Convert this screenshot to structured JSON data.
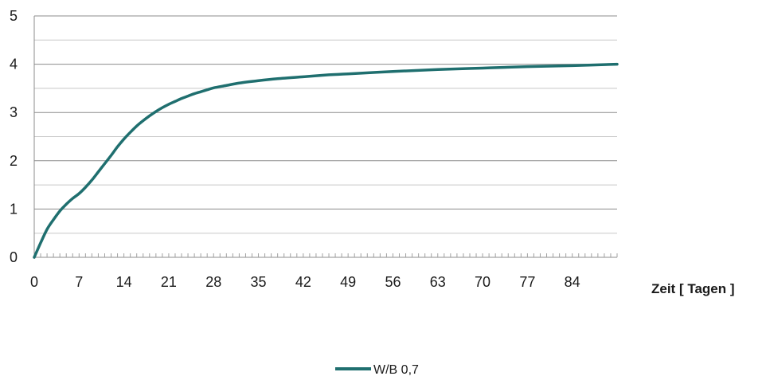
{
  "chart_data": {
    "type": "line",
    "xlabel": "Zeit [ Tagen ]",
    "ylabel": "",
    "title": "",
    "xlim": [
      0,
      91
    ],
    "ylim": [
      0,
      5
    ],
    "x_ticks": [
      0,
      7,
      14,
      21,
      28,
      35,
      42,
      49,
      56,
      63,
      70,
      77,
      84
    ],
    "x_tick_labels": [
      "0",
      "7",
      "14",
      "21",
      "28",
      "35",
      "42",
      "49",
      "56",
      "63",
      "70",
      "77",
      "84"
    ],
    "y_ticks": [
      0,
      1,
      2,
      3,
      4,
      5
    ],
    "y_tick_labels": [
      "0",
      "1",
      "2",
      "3",
      "4",
      "5"
    ],
    "grid": "horizontal, major and minor (0.5 step)",
    "legend_position": "bottom-center",
    "series": [
      {
        "name": "W/B 0,7",
        "color": "#1f6f6f",
        "x": [
          0,
          1,
          2,
          3,
          4,
          5,
          6,
          7,
          8,
          9,
          10,
          11,
          12,
          13,
          14,
          15,
          16,
          17,
          18,
          19,
          20,
          21,
          22,
          23,
          24,
          25,
          26,
          27,
          28,
          30,
          32,
          35,
          38,
          42,
          46,
          49,
          56,
          63,
          70,
          77,
          84,
          91
        ],
        "values": [
          0,
          0.3,
          0.58,
          0.78,
          0.96,
          1.1,
          1.22,
          1.32,
          1.45,
          1.6,
          1.77,
          1.94,
          2.11,
          2.29,
          2.45,
          2.59,
          2.72,
          2.83,
          2.93,
          3.02,
          3.1,
          3.17,
          3.23,
          3.29,
          3.34,
          3.39,
          3.43,
          3.47,
          3.51,
          3.56,
          3.61,
          3.66,
          3.7,
          3.74,
          3.78,
          3.8,
          3.85,
          3.89,
          3.92,
          3.95,
          3.97,
          4.0
        ]
      }
    ]
  }
}
